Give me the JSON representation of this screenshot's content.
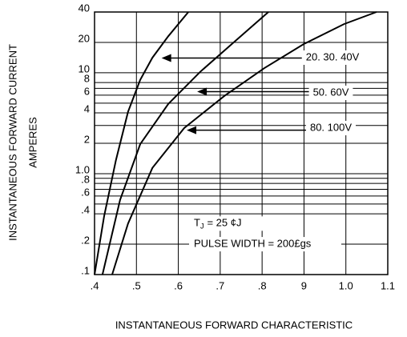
{
  "chart_data": {
    "type": "line",
    "x_label": "INSTANTANEOUS FORWARD CHARACTERISTIC",
    "y_label": [
      "INSTANTANEOUS FORWARD CURRENT",
      "AMPERES"
    ],
    "xlim": [
      0.4,
      1.1
    ],
    "ylim": [
      0.1,
      40
    ],
    "log_y": true,
    "grid": true,
    "xticks": [
      {
        "value": 0.4,
        "label": ".4"
      },
      {
        "value": 0.5,
        "label": ".5"
      },
      {
        "value": 0.6,
        "label": ".6"
      },
      {
        "value": 0.7,
        "label": ".7"
      },
      {
        "value": 0.8,
        "label": ".8"
      },
      {
        "value": 0.9,
        "label": "9"
      },
      {
        "value": 1.0,
        "label": "1.0"
      },
      1.1
    ],
    "yticks": [
      40,
      20,
      10,
      8,
      6,
      4,
      2,
      {
        "value": 1.0,
        "label": "1.0"
      },
      {
        "value": 0.8,
        "label": ".8"
      },
      {
        "value": 0.6,
        "label": ".6"
      },
      {
        "value": 0.4,
        "label": ".4"
      },
      {
        "value": 0.2,
        "label": ".2"
      },
      {
        "value": 0.1,
        "label": ".1"
      }
    ],
    "minor_yticks": [
      7,
      5,
      3,
      0.9,
      0.7,
      0.5
    ],
    "series": [
      {
        "name": "20. 30. 40V",
        "color": "#000000",
        "x": [
          0.4,
          0.423,
          0.451,
          0.48,
          0.509,
          0.538,
          0.576,
          0.624
        ],
        "values": [
          0.1,
          0.38,
          1.36,
          4.1,
          8.5,
          14.1,
          23,
          40
        ],
        "arrow_to": [
          0.56,
          14
        ]
      },
      {
        "name": "50. 60V",
        "color": "#000000",
        "x": [
          0.419,
          0.461,
          0.509,
          0.576,
          0.652,
          0.728,
          0.815
        ],
        "values": [
          0.1,
          0.55,
          1.96,
          4.9,
          10.2,
          19.3,
          40
        ],
        "arrow_to": [
          0.645,
          6.5
        ]
      },
      {
        "name": "80. 100V",
        "color": "#000000",
        "x": [
          0.442,
          0.48,
          0.538,
          0.614,
          0.71,
          0.805,
          0.9,
          0.996,
          1.073
        ],
        "values": [
          0.1,
          0.32,
          1.14,
          2.83,
          5.9,
          11.1,
          19.3,
          30.4,
          40
        ],
        "arrow_to": [
          0.62,
          2.7
        ]
      }
    ],
    "conditions": {
      "tj": {
        "main": "T",
        "sub": "J",
        "rest": "= 25 ¢J"
      },
      "pulse": "PULSE WIDTH = 200£gs"
    }
  }
}
